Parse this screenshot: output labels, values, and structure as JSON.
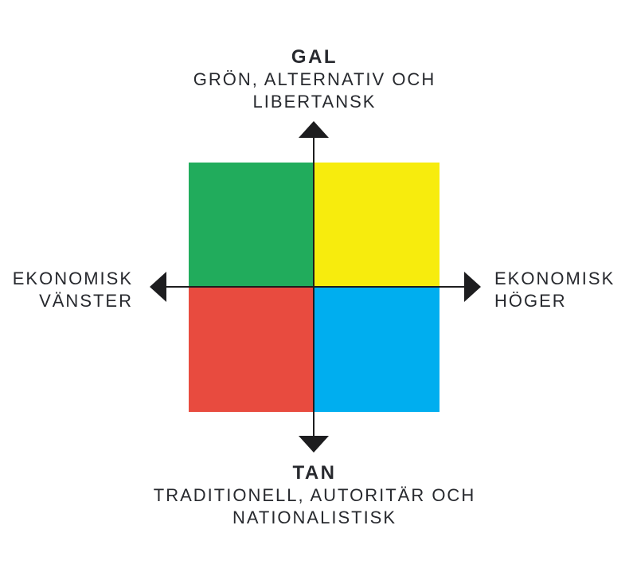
{
  "diagram": {
    "type": "quadrant-diagram",
    "top": {
      "title": "GAL",
      "subtitle_line1": "GRÖN, ALTERNATIV OCH",
      "subtitle_line2": "LIBERTANSK"
    },
    "bottom": {
      "title": "TAN",
      "subtitle_line1": "TRADITIONELL, AUTORITÄR OCH",
      "subtitle_line2": "NATIONALISTISK"
    },
    "left": {
      "line1": "EKONOMISK",
      "line2": "VÄNSTER"
    },
    "right": {
      "line1": "EKONOMISK",
      "line2": "HÖGER"
    }
  },
  "colors": {
    "quadrant_top_left": "#21ac5c",
    "quadrant_top_right": "#f7ec0d",
    "quadrant_bottom_left": "#e84b3f",
    "quadrant_bottom_right": "#00aeef",
    "axis": "#1d1d1f",
    "text": "#27292e"
  }
}
